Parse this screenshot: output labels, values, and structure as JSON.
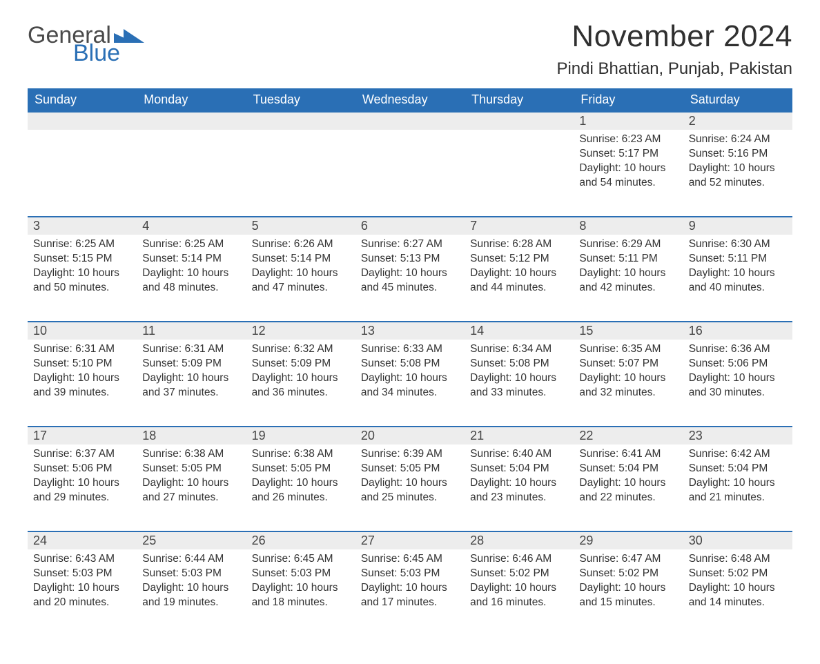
{
  "logo": {
    "text1": "General",
    "text2": "Blue",
    "triangle_color": "#2a6fb5"
  },
  "title": "November 2024",
  "location": "Pindi Bhattian, Punjab, Pakistan",
  "colors": {
    "header_bg": "#2a6fb5",
    "header_text": "#ffffff",
    "daynum_bg": "#ededed",
    "row_divider": "#2a6fb5",
    "body_text": "#333333",
    "title_text": "#303030"
  },
  "weekdays": [
    "Sunday",
    "Monday",
    "Tuesday",
    "Wednesday",
    "Thursday",
    "Friday",
    "Saturday"
  ],
  "weeks": [
    [
      null,
      null,
      null,
      null,
      null,
      {
        "day": "1",
        "sunrise": "Sunrise: 6:23 AM",
        "sunset": "Sunset: 5:17 PM",
        "daylight1": "Daylight: 10 hours",
        "daylight2": "and 54 minutes."
      },
      {
        "day": "2",
        "sunrise": "Sunrise: 6:24 AM",
        "sunset": "Sunset: 5:16 PM",
        "daylight1": "Daylight: 10 hours",
        "daylight2": "and 52 minutes."
      }
    ],
    [
      {
        "day": "3",
        "sunrise": "Sunrise: 6:25 AM",
        "sunset": "Sunset: 5:15 PM",
        "daylight1": "Daylight: 10 hours",
        "daylight2": "and 50 minutes."
      },
      {
        "day": "4",
        "sunrise": "Sunrise: 6:25 AM",
        "sunset": "Sunset: 5:14 PM",
        "daylight1": "Daylight: 10 hours",
        "daylight2": "and 48 minutes."
      },
      {
        "day": "5",
        "sunrise": "Sunrise: 6:26 AM",
        "sunset": "Sunset: 5:14 PM",
        "daylight1": "Daylight: 10 hours",
        "daylight2": "and 47 minutes."
      },
      {
        "day": "6",
        "sunrise": "Sunrise: 6:27 AM",
        "sunset": "Sunset: 5:13 PM",
        "daylight1": "Daylight: 10 hours",
        "daylight2": "and 45 minutes."
      },
      {
        "day": "7",
        "sunrise": "Sunrise: 6:28 AM",
        "sunset": "Sunset: 5:12 PM",
        "daylight1": "Daylight: 10 hours",
        "daylight2": "and 44 minutes."
      },
      {
        "day": "8",
        "sunrise": "Sunrise: 6:29 AM",
        "sunset": "Sunset: 5:11 PM",
        "daylight1": "Daylight: 10 hours",
        "daylight2": "and 42 minutes."
      },
      {
        "day": "9",
        "sunrise": "Sunrise: 6:30 AM",
        "sunset": "Sunset: 5:11 PM",
        "daylight1": "Daylight: 10 hours",
        "daylight2": "and 40 minutes."
      }
    ],
    [
      {
        "day": "10",
        "sunrise": "Sunrise: 6:31 AM",
        "sunset": "Sunset: 5:10 PM",
        "daylight1": "Daylight: 10 hours",
        "daylight2": "and 39 minutes."
      },
      {
        "day": "11",
        "sunrise": "Sunrise: 6:31 AM",
        "sunset": "Sunset: 5:09 PM",
        "daylight1": "Daylight: 10 hours",
        "daylight2": "and 37 minutes."
      },
      {
        "day": "12",
        "sunrise": "Sunrise: 6:32 AM",
        "sunset": "Sunset: 5:09 PM",
        "daylight1": "Daylight: 10 hours",
        "daylight2": "and 36 minutes."
      },
      {
        "day": "13",
        "sunrise": "Sunrise: 6:33 AM",
        "sunset": "Sunset: 5:08 PM",
        "daylight1": "Daylight: 10 hours",
        "daylight2": "and 34 minutes."
      },
      {
        "day": "14",
        "sunrise": "Sunrise: 6:34 AM",
        "sunset": "Sunset: 5:08 PM",
        "daylight1": "Daylight: 10 hours",
        "daylight2": "and 33 minutes."
      },
      {
        "day": "15",
        "sunrise": "Sunrise: 6:35 AM",
        "sunset": "Sunset: 5:07 PM",
        "daylight1": "Daylight: 10 hours",
        "daylight2": "and 32 minutes."
      },
      {
        "day": "16",
        "sunrise": "Sunrise: 6:36 AM",
        "sunset": "Sunset: 5:06 PM",
        "daylight1": "Daylight: 10 hours",
        "daylight2": "and 30 minutes."
      }
    ],
    [
      {
        "day": "17",
        "sunrise": "Sunrise: 6:37 AM",
        "sunset": "Sunset: 5:06 PM",
        "daylight1": "Daylight: 10 hours",
        "daylight2": "and 29 minutes."
      },
      {
        "day": "18",
        "sunrise": "Sunrise: 6:38 AM",
        "sunset": "Sunset: 5:05 PM",
        "daylight1": "Daylight: 10 hours",
        "daylight2": "and 27 minutes."
      },
      {
        "day": "19",
        "sunrise": "Sunrise: 6:38 AM",
        "sunset": "Sunset: 5:05 PM",
        "daylight1": "Daylight: 10 hours",
        "daylight2": "and 26 minutes."
      },
      {
        "day": "20",
        "sunrise": "Sunrise: 6:39 AM",
        "sunset": "Sunset: 5:05 PM",
        "daylight1": "Daylight: 10 hours",
        "daylight2": "and 25 minutes."
      },
      {
        "day": "21",
        "sunrise": "Sunrise: 6:40 AM",
        "sunset": "Sunset: 5:04 PM",
        "daylight1": "Daylight: 10 hours",
        "daylight2": "and 23 minutes."
      },
      {
        "day": "22",
        "sunrise": "Sunrise: 6:41 AM",
        "sunset": "Sunset: 5:04 PM",
        "daylight1": "Daylight: 10 hours",
        "daylight2": "and 22 minutes."
      },
      {
        "day": "23",
        "sunrise": "Sunrise: 6:42 AM",
        "sunset": "Sunset: 5:04 PM",
        "daylight1": "Daylight: 10 hours",
        "daylight2": "and 21 minutes."
      }
    ],
    [
      {
        "day": "24",
        "sunrise": "Sunrise: 6:43 AM",
        "sunset": "Sunset: 5:03 PM",
        "daylight1": "Daylight: 10 hours",
        "daylight2": "and 20 minutes."
      },
      {
        "day": "25",
        "sunrise": "Sunrise: 6:44 AM",
        "sunset": "Sunset: 5:03 PM",
        "daylight1": "Daylight: 10 hours",
        "daylight2": "and 19 minutes."
      },
      {
        "day": "26",
        "sunrise": "Sunrise: 6:45 AM",
        "sunset": "Sunset: 5:03 PM",
        "daylight1": "Daylight: 10 hours",
        "daylight2": "and 18 minutes."
      },
      {
        "day": "27",
        "sunrise": "Sunrise: 6:45 AM",
        "sunset": "Sunset: 5:03 PM",
        "daylight1": "Daylight: 10 hours",
        "daylight2": "and 17 minutes."
      },
      {
        "day": "28",
        "sunrise": "Sunrise: 6:46 AM",
        "sunset": "Sunset: 5:02 PM",
        "daylight1": "Daylight: 10 hours",
        "daylight2": "and 16 minutes."
      },
      {
        "day": "29",
        "sunrise": "Sunrise: 6:47 AM",
        "sunset": "Sunset: 5:02 PM",
        "daylight1": "Daylight: 10 hours",
        "daylight2": "and 15 minutes."
      },
      {
        "day": "30",
        "sunrise": "Sunrise: 6:48 AM",
        "sunset": "Sunset: 5:02 PM",
        "daylight1": "Daylight: 10 hours",
        "daylight2": "and 14 minutes."
      }
    ]
  ]
}
